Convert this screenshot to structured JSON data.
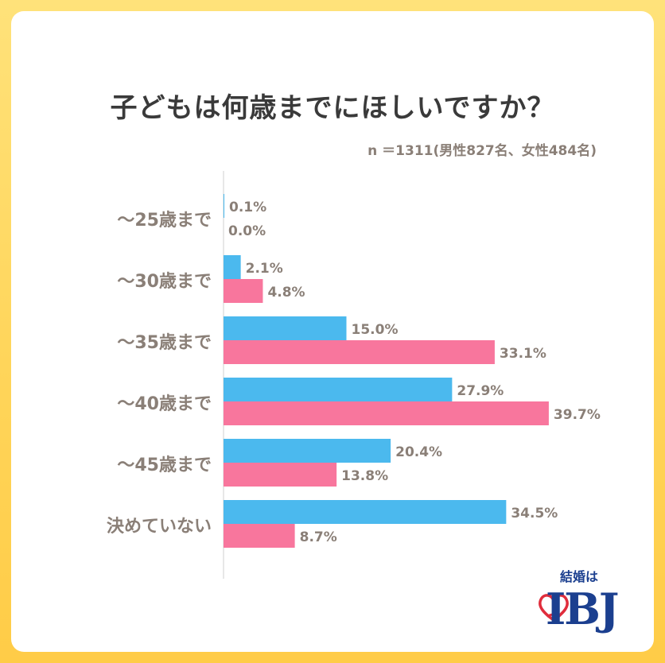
{
  "title": "子どもは何歳までにほしいですか？",
  "sample_note": "n ＝1311(男性827名、女性484名)",
  "logo": {
    "tagline": "結婚は",
    "brand": "IBJ"
  },
  "chart_data": {
    "type": "bar",
    "orientation": "horizontal",
    "categories": [
      "〜25歳まで",
      "〜30歳まで",
      "〜35歳まで",
      "〜40歳まで",
      "〜45歳まで",
      "決めていない"
    ],
    "series": [
      {
        "name": "",
        "color": "#4bb9ee",
        "values": [
          0.1,
          2.1,
          15.0,
          27.9,
          20.4,
          34.5
        ],
        "labels": [
          "0.1%",
          "2.1%",
          "15.0%",
          "27.9%",
          "20.4%",
          "34.5%"
        ]
      },
      {
        "name": "",
        "color": "#f8769d",
        "values": [
          0.0,
          4.8,
          33.1,
          39.7,
          13.8,
          8.7
        ],
        "labels": [
          "0.0%",
          "4.8%",
          "33.1%",
          "39.7%",
          "13.8%",
          "8.7%"
        ]
      }
    ],
    "unit": "%",
    "xlim": [
      0,
      40
    ],
    "grid": false,
    "legend": "none"
  }
}
